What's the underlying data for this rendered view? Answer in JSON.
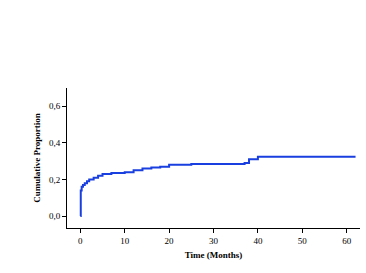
{
  "chart_data": {
    "type": "line",
    "x_label": "Time (Months)",
    "y_label": "Cumulative Proportion",
    "line_style": "step",
    "color": "#1a3fe0",
    "grid": false,
    "x": [
      0,
      0.1,
      0.3,
      0.6,
      1,
      1.5,
      2,
      3,
      4,
      5,
      7,
      10,
      12,
      14,
      16,
      18,
      20,
      25,
      37,
      38,
      40,
      62
    ],
    "values": [
      0,
      0.14,
      0.16,
      0.17,
      0.18,
      0.19,
      0.2,
      0.21,
      0.22,
      0.23,
      0.235,
      0.24,
      0.25,
      0.26,
      0.265,
      0.27,
      0.28,
      0.285,
      0.29,
      0.31,
      0.325,
      0.325
    ],
    "xlim": [
      -3,
      63
    ],
    "ylim": [
      -0.065,
      0.7
    ],
    "xticks": [
      0,
      10,
      20,
      30,
      40,
      50,
      60
    ],
    "yticks": [
      {
        "value": 0,
        "label": "0,0"
      },
      {
        "value": 0.2,
        "label": "0,2"
      },
      {
        "value": 0.4,
        "label": "0,4"
      },
      {
        "value": 0.6,
        "label": "0,6"
      }
    ]
  }
}
